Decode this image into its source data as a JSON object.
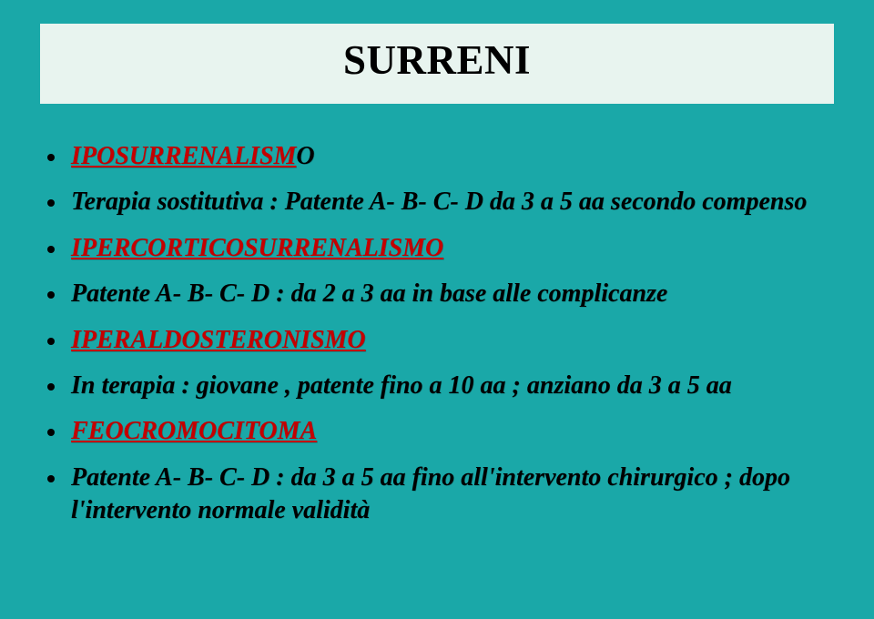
{
  "slide": {
    "background_color": "#1aa8a8",
    "title_band_color": "#e8f4ef",
    "title": "SURRENI",
    "title_fontsize": 45,
    "title_color": "#000000",
    "bullet_fontsize": 28,
    "bullet_dot_color": "#000000",
    "heading_color": "#c40000",
    "bullets": [
      {
        "text_red": "IPOSURRENALISM",
        "text_red_tail": "O",
        "text_plain": ""
      },
      {
        "text_plain": "Terapia sostitutiva : Patente A- B- C- D da 3 a 5 aa secondo compenso"
      },
      {
        "text_red": "IPERCORTICOSURRENALISMO",
        "text_plain": ""
      },
      {
        "text_plain": "Patente  A- B- C- D : da 2 a 3 aa in base alle complicanze"
      },
      {
        "text_red": "IPERALDOSTERONISMO",
        "text_plain": ""
      },
      {
        "text_plain": "In terapia : giovane , patente fino a 10 aa ; anziano da 3 a 5 aa"
      },
      {
        "text_red": "FEOCROMOCITOMA",
        "text_plain": ""
      },
      {
        "text_plain": "Patente A- B- C- D : da 3 a 5 aa fino all'intervento chirurgico ; dopo l'intervento normale  validità"
      }
    ]
  }
}
